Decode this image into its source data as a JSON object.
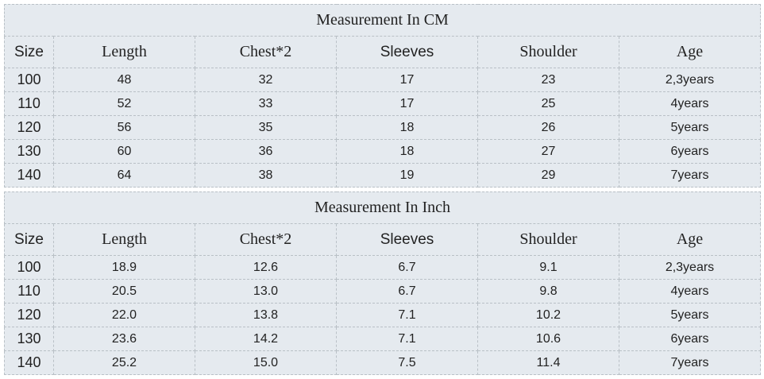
{
  "tables": [
    {
      "title": "Measurement In CM",
      "header": [
        "Size",
        "Length",
        "Chest*2",
        "Sleeves",
        "Shoulder",
        "Age"
      ],
      "rows": [
        [
          "100",
          "48",
          "32",
          "17",
          "23",
          "2,3years"
        ],
        [
          "110",
          "52",
          "33",
          "17",
          "25",
          "4years"
        ],
        [
          "120",
          "56",
          "35",
          "18",
          "26",
          "5years"
        ],
        [
          "130",
          "60",
          "36",
          "18",
          "27",
          "6years"
        ],
        [
          "140",
          "64",
          "38",
          "19",
          "29",
          "7years"
        ]
      ]
    },
    {
      "title": "Measurement In Inch",
      "header": [
        "Size",
        "Length",
        "Chest*2",
        "Sleeves",
        "Shoulder",
        "Age"
      ],
      "rows": [
        [
          "100",
          "18.9",
          "12.6",
          "6.7",
          "9.1",
          "2,3years"
        ],
        [
          "110",
          "20.5",
          "13.0",
          "6.7",
          "9.8",
          "4years"
        ],
        [
          "120",
          "22.0",
          "13.8",
          "7.1",
          "10.2",
          "5years"
        ],
        [
          "130",
          "23.6",
          "14.2",
          "7.1",
          "10.6",
          "6years"
        ],
        [
          "140",
          "25.2",
          "15.0",
          "7.5",
          "11.4",
          "7years"
        ]
      ]
    }
  ]
}
